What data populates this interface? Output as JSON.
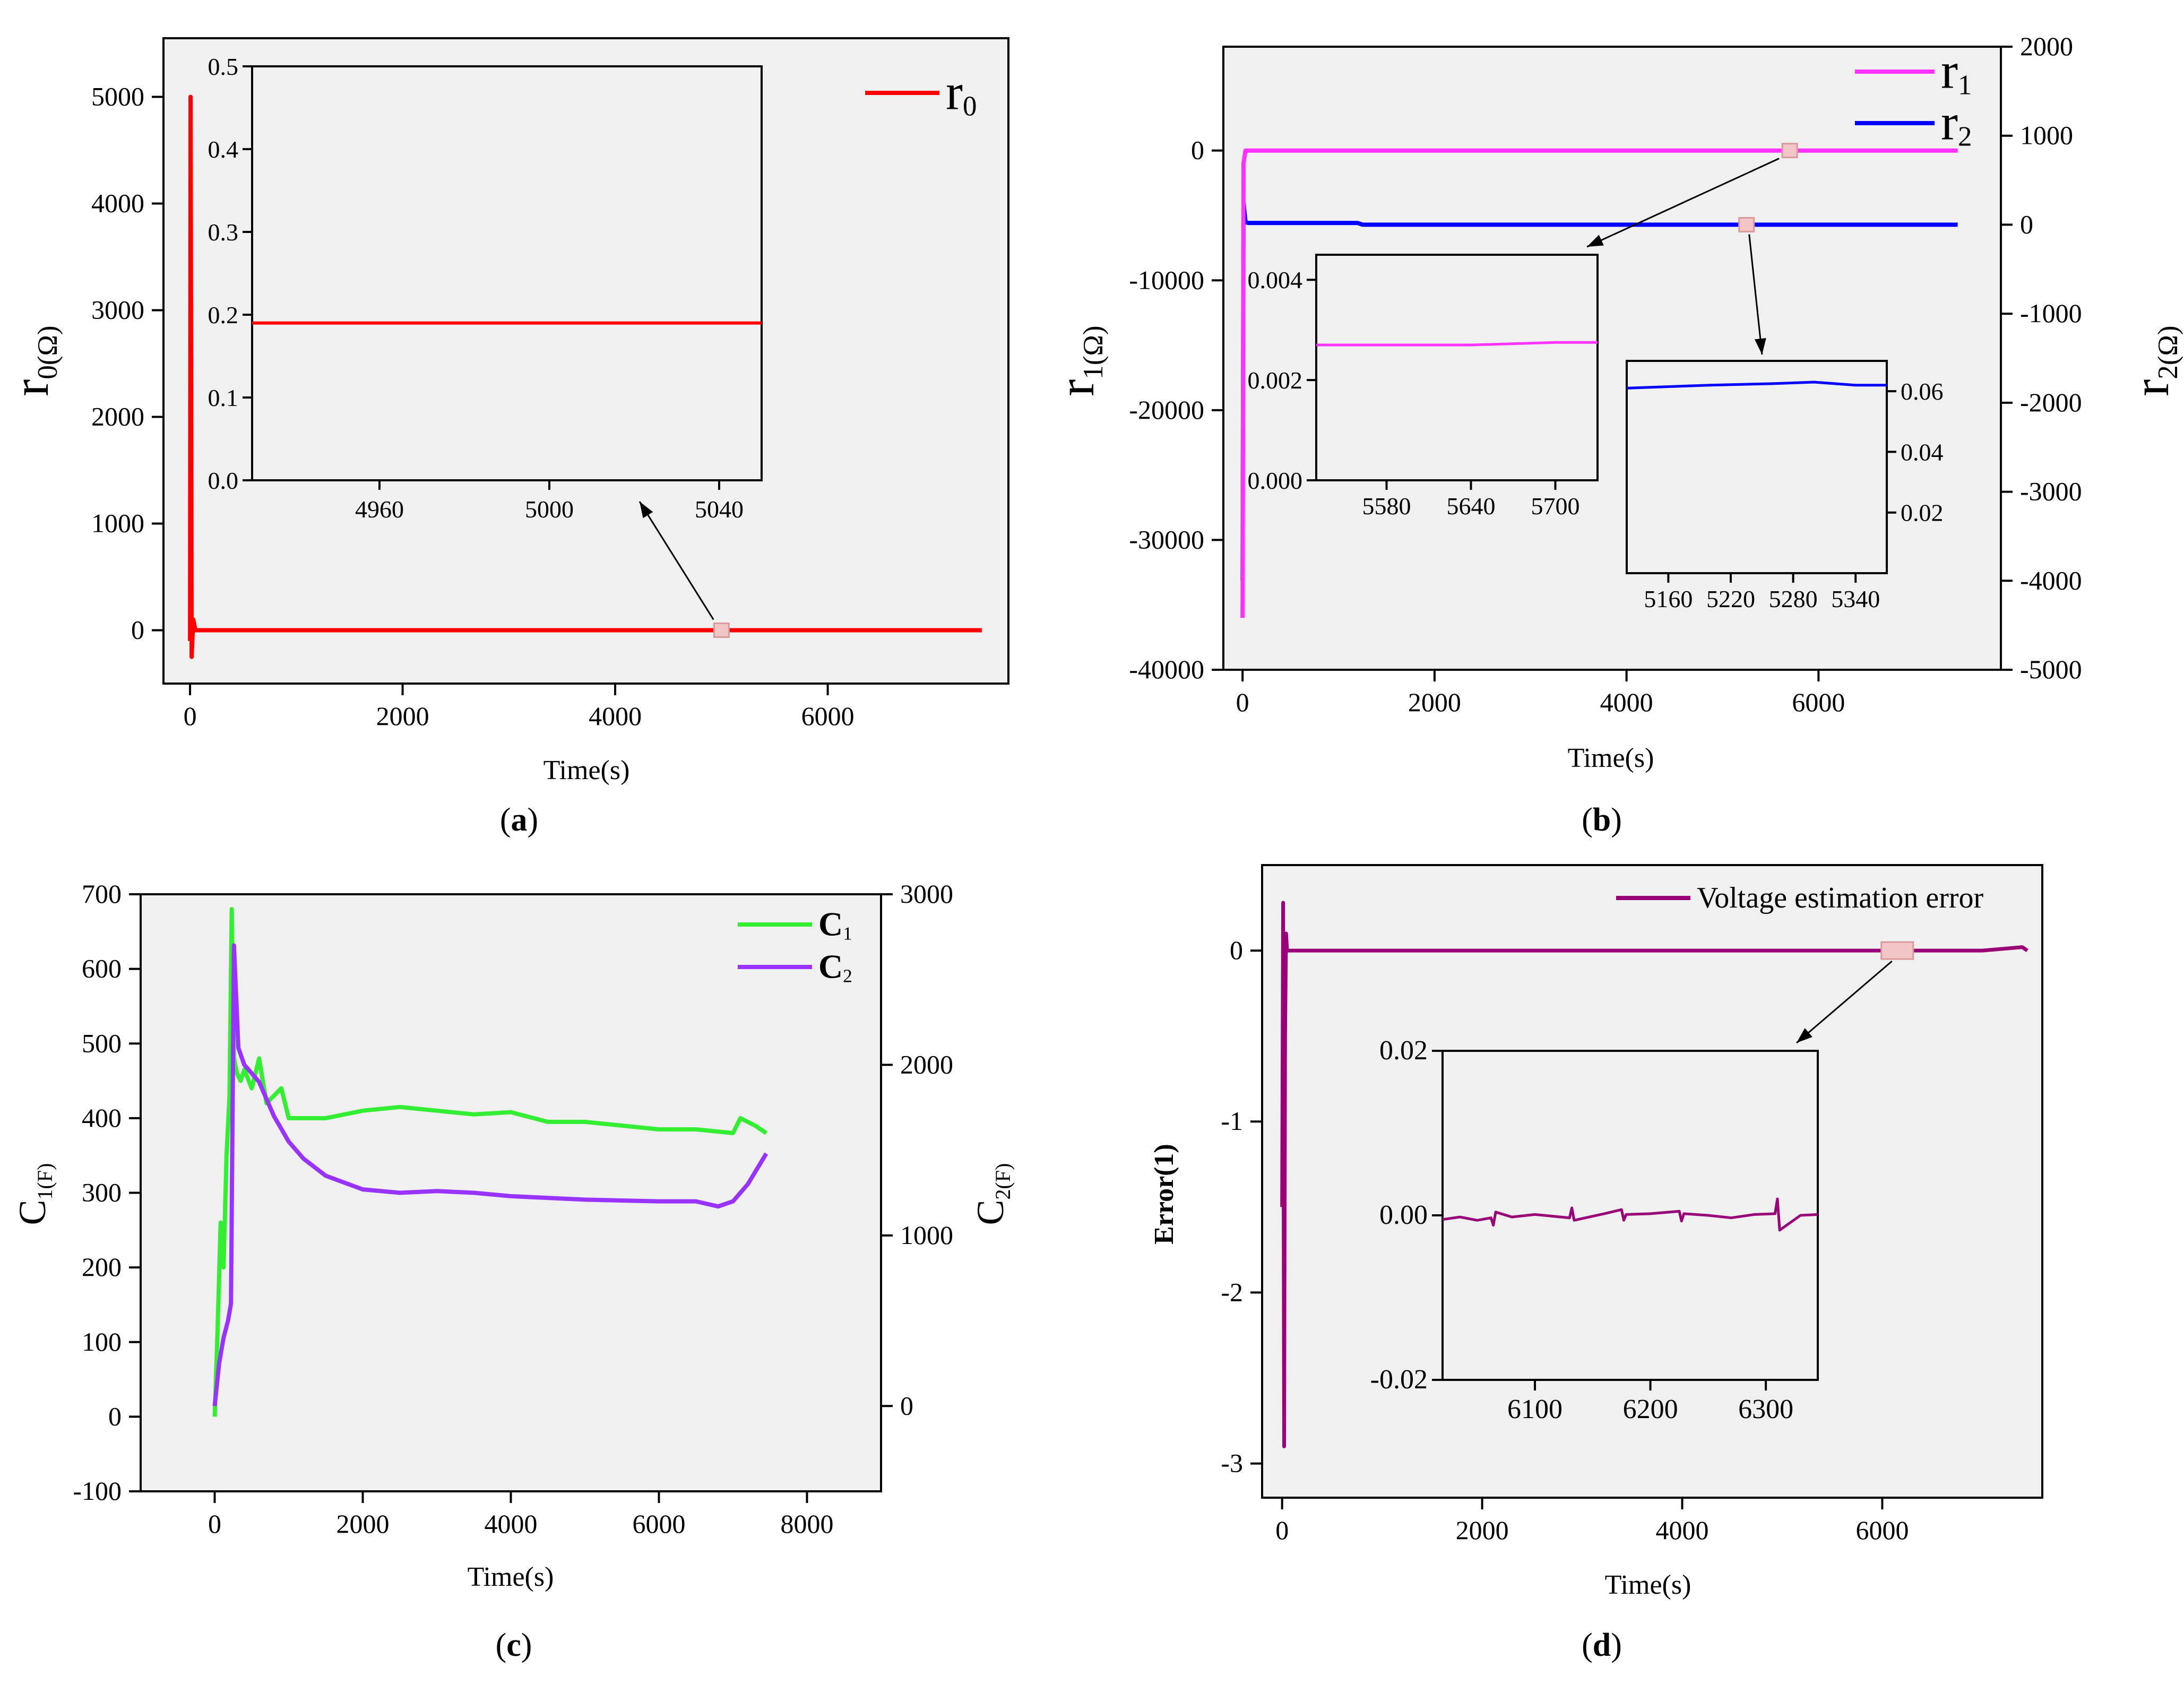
{
  "chart_data": [
    {
      "panel": "(a)",
      "caption_letter": "a",
      "type": "line",
      "xlabel": "Time(s)",
      "ylabel_base": "r",
      "ylabel_sub": "0(Ω)",
      "xlim": [
        -250,
        7700
      ],
      "ylim": [
        -500,
        5550
      ],
      "xticks": [
        0,
        2000,
        4000,
        6000
      ],
      "yticks": [
        0,
        1000,
        2000,
        3000,
        4000,
        5000
      ],
      "legend": [
        {
          "name": "r",
          "sub": "0",
          "color": "#ff0000"
        }
      ],
      "series": [
        {
          "name": "r0",
          "color": "#ff0000",
          "x": [
            0,
            5,
            15,
            30,
            50,
            100,
            500,
            2000,
            4000,
            6000,
            7450
          ],
          "y": [
            -100,
            5000,
            -250,
            100,
            0,
            0,
            0,
            0,
            0,
            0,
            0
          ]
        }
      ],
      "inset": {
        "xlim": [
          4930,
          5050
        ],
        "ylim": [
          0.0,
          0.5
        ],
        "xticks": [
          4960,
          5000,
          5040
        ],
        "yticks": [
          0.0,
          0.1,
          0.2,
          0.3,
          0.4,
          0.5
        ],
        "ytick_labels": [
          "0.0",
          "0.1",
          "0.2",
          "0.3",
          "0.4",
          "0.5"
        ],
        "series": [
          {
            "name": "r0",
            "color": "#ff0000",
            "x": [
              4930,
              5050
            ],
            "y": [
              0.19,
              0.19
            ]
          }
        ]
      }
    },
    {
      "panel": "(b)",
      "caption_letter": "b",
      "type": "line",
      "xlabel": "Time(s)",
      "ylabel_base": "r",
      "ylabel_sub": "1(Ω)",
      "y2label_base": "r",
      "y2label_sub": "2(Ω)",
      "xlim": [
        -200,
        7900
      ],
      "ylim": [
        -40000,
        8000
      ],
      "y2lim": [
        -5000,
        2000
      ],
      "xticks": [
        0,
        2000,
        4000,
        6000
      ],
      "yticks": [
        -40000,
        -30000,
        -20000,
        -10000,
        0
      ],
      "y2ticks": [
        -5000,
        -4000,
        -3000,
        -2000,
        -1000,
        0,
        1000,
        2000
      ],
      "legend": [
        {
          "name": "r",
          "sub": "1",
          "color": "#ff33ff"
        },
        {
          "name": "r",
          "sub": "2",
          "color": "#0000ff"
        }
      ],
      "series": [
        {
          "name": "r1",
          "color": "#ff33ff",
          "axis": "left",
          "x": [
            0,
            10,
            30,
            60,
            100,
            1000,
            3000,
            5000,
            7450
          ],
          "y": [
            -36000,
            -1000,
            0,
            0,
            0,
            0,
            0,
            0,
            0
          ]
        },
        {
          "name": "r2",
          "color": "#0000ff",
          "axis": "right",
          "x": [
            0,
            10,
            30,
            60,
            1200,
            1250,
            3000,
            5000,
            7450
          ],
          "y": [
            -4000,
            250,
            30,
            20,
            20,
            0,
            0,
            0,
            0
          ]
        }
      ],
      "inset_r1": {
        "xlim": [
          5530,
          5730
        ],
        "ylim": [
          0.0,
          0.0045
        ],
        "xticks": [
          5580,
          5640,
          5700
        ],
        "yticks": [
          0.0,
          0.002,
          0.004
        ],
        "ytick_labels": [
          "0.000",
          "0.002",
          "0.004"
        ],
        "series": [
          {
            "name": "r1",
            "color": "#ff33ff",
            "x": [
              5530,
              5640,
              5700,
              5730
            ],
            "y": [
              0.0027,
              0.0027,
              0.00275,
              0.00275
            ]
          }
        ]
      },
      "inset_r2": {
        "xlim": [
          5120,
          5370
        ],
        "ylim": [
          0.0,
          0.07
        ],
        "xticks": [
          5160,
          5220,
          5280,
          5340
        ],
        "yticks": [
          0.02,
          0.04,
          0.06
        ],
        "ytick_labels": [
          "0.02",
          "0.04",
          "0.06"
        ],
        "series": [
          {
            "name": "r2",
            "color": "#0000ff",
            "x": [
              5120,
              5200,
              5260,
              5300,
              5340,
              5370
            ],
            "y": [
              0.061,
              0.062,
              0.0625,
              0.063,
              0.062,
              0.062
            ]
          }
        ]
      }
    },
    {
      "panel": "(c)",
      "caption_letter": "c",
      "type": "line",
      "xlabel": "Time(s)",
      "ylabel_base": "C",
      "ylabel_sub": "1(F)",
      "y2label_base": "C",
      "y2label_sub": "2(F)",
      "xlim": [
        -1000,
        9000
      ],
      "ylim": [
        -100,
        700
      ],
      "y2lim": [
        -500,
        3000
      ],
      "xticks": [
        0,
        2000,
        4000,
        6000,
        8000
      ],
      "yticks": [
        -100,
        0,
        100,
        200,
        300,
        400,
        500,
        600,
        700
      ],
      "y2ticks": [
        0,
        1000,
        2000,
        3000
      ],
      "legend": [
        {
          "name": "C",
          "sub": "1",
          "color": "#33ee33"
        },
        {
          "name": "C",
          "sub": "2",
          "color": "#9933ff"
        }
      ],
      "series": [
        {
          "name": "C1",
          "color": "#33ee33",
          "axis": "left",
          "x": [
            0,
            40,
            80,
            120,
            160,
            200,
            230,
            260,
            300,
            350,
            400,
            500,
            600,
            700,
            800,
            900,
            1000,
            1200,
            1500,
            2000,
            2500,
            3000,
            3500,
            4000,
            4500,
            5000,
            5500,
            6000,
            6500,
            7000,
            7100,
            7300,
            7450
          ],
          "y": [
            0,
            120,
            260,
            200,
            350,
            430,
            680,
            480,
            460,
            450,
            465,
            440,
            480,
            420,
            430,
            440,
            400,
            400,
            400,
            410,
            415,
            410,
            405,
            408,
            395,
            395,
            390,
            385,
            385,
            380,
            400,
            390,
            380
          ]
        },
        {
          "name": "C2",
          "color": "#9933ff",
          "axis": "right",
          "x": [
            0,
            60,
            120,
            180,
            220,
            260,
            290,
            320,
            400,
            500,
            600,
            700,
            800,
            1000,
            1200,
            1500,
            2000,
            2500,
            3000,
            3500,
            4000,
            5000,
            6000,
            6500,
            6800,
            7000,
            7200,
            7450
          ],
          "y": [
            0,
            250,
            400,
            500,
            600,
            2700,
            2400,
            2100,
            2000,
            1950,
            1900,
            1800,
            1700,
            1550,
            1450,
            1350,
            1270,
            1250,
            1260,
            1250,
            1230,
            1210,
            1200,
            1200,
            1170,
            1200,
            1300,
            1480
          ]
        }
      ]
    },
    {
      "panel": "(d)",
      "caption_letter": "d",
      "type": "line",
      "xlabel": "Time(s)",
      "ylabel": "Error(1)",
      "xlim": [
        -200,
        7600
      ],
      "ylim": [
        -3.2,
        0.5
      ],
      "xticks": [
        0,
        2000,
        4000,
        6000
      ],
      "yticks": [
        -3,
        -2,
        -1,
        0
      ],
      "legend": [
        {
          "name": "Voltage estimation error",
          "color": "#990077"
        }
      ],
      "series": [
        {
          "name": "Voltage estimation error",
          "color": "#990077",
          "x": [
            0,
            10,
            20,
            30,
            40,
            50,
            1000,
            3000,
            5000,
            7000,
            7400,
            7450
          ],
          "y": [
            -1.5,
            0.28,
            -2.9,
            -0.5,
            0.1,
            0,
            0,
            0,
            0,
            0,
            0.02,
            0
          ]
        }
      ],
      "inset": {
        "xlim": [
          6020,
          6345
        ],
        "ylim": [
          -0.02,
          0.02
        ],
        "xticks": [
          6100,
          6200,
          6300
        ],
        "yticks": [
          -0.02,
          0.0,
          0.02
        ],
        "ytick_labels": [
          "-0.02",
          "0.00",
          "0.02"
        ],
        "series": [
          {
            "name": "error",
            "color": "#990077",
            "x": [
              6020,
              6035,
              6050,
              6062,
              6064,
              6066,
              6080,
              6100,
              6130,
              6132,
              6134,
              6160,
              6175,
              6177,
              6179,
              6200,
              6225,
              6227,
              6229,
              6250,
              6270,
              6290,
              6308,
              6310,
              6312,
              6330,
              6345
            ],
            "y": [
              -0.0005,
              -0.0002,
              -0.0006,
              -0.0003,
              -0.0012,
              0.0004,
              -0.0002,
              0.0001,
              -0.0003,
              0.0009,
              -0.0006,
              0.0002,
              0.0007,
              -0.0006,
              0.0001,
              0.0002,
              0.0005,
              -0.0007,
              0.0002,
              0.0,
              -0.0003,
              0.0001,
              0.0002,
              0.002,
              -0.0018,
              0.0,
              0.0001
            ]
          }
        ]
      }
    }
  ]
}
